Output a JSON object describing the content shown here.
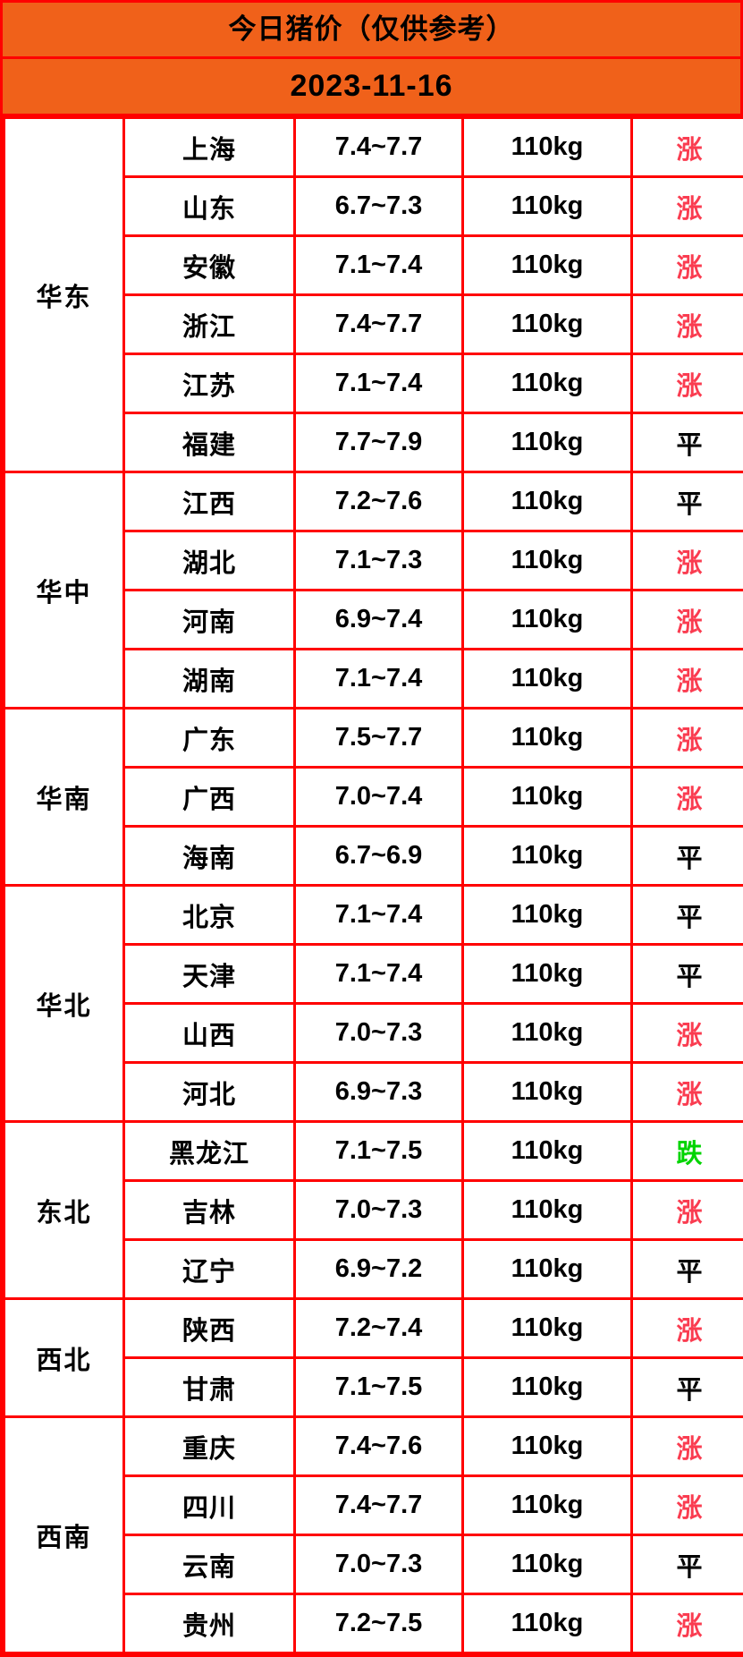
{
  "header": {
    "title": "今日猪价（仅供参考）",
    "date": "2023-11-16"
  },
  "colors": {
    "header_orange": "#f0611a",
    "grid_red": "#ff0000",
    "trend_up_red": "#fa3c50",
    "trend_down_green": "#00d400",
    "trend_flat_black": "#000000"
  },
  "chart_data": {
    "type": "table",
    "title": "今日猪价（仅供参考）",
    "date": "2023-11-16",
    "regions": [
      {
        "name": "华东",
        "rows": [
          {
            "province": "上海",
            "price": "7.4~7.7",
            "weight": "110kg",
            "trend": "涨",
            "trend_type": "up"
          },
          {
            "province": "山东",
            "price": "6.7~7.3",
            "weight": "110kg",
            "trend": "涨",
            "trend_type": "up"
          },
          {
            "province": "安徽",
            "price": "7.1~7.4",
            "weight": "110kg",
            "trend": "涨",
            "trend_type": "up"
          },
          {
            "province": "浙江",
            "price": "7.4~7.7",
            "weight": "110kg",
            "trend": "涨",
            "trend_type": "up"
          },
          {
            "province": "江苏",
            "price": "7.1~7.4",
            "weight": "110kg",
            "trend": "涨",
            "trend_type": "up"
          },
          {
            "province": "福建",
            "price": "7.7~7.9",
            "weight": "110kg",
            "trend": "平",
            "trend_type": "flat"
          }
        ]
      },
      {
        "name": "华中",
        "rows": [
          {
            "province": "江西",
            "price": "7.2~7.6",
            "weight": "110kg",
            "trend": "平",
            "trend_type": "flat"
          },
          {
            "province": "湖北",
            "price": "7.1~7.3",
            "weight": "110kg",
            "trend": "涨",
            "trend_type": "up"
          },
          {
            "province": "河南",
            "price": "6.9~7.4",
            "weight": "110kg",
            "trend": "涨",
            "trend_type": "up"
          },
          {
            "province": "湖南",
            "price": "7.1~7.4",
            "weight": "110kg",
            "trend": "涨",
            "trend_type": "up"
          }
        ]
      },
      {
        "name": "华南",
        "rows": [
          {
            "province": "广东",
            "price": "7.5~7.7",
            "weight": "110kg",
            "trend": "涨",
            "trend_type": "up"
          },
          {
            "province": "广西",
            "price": "7.0~7.4",
            "weight": "110kg",
            "trend": "涨",
            "trend_type": "up"
          },
          {
            "province": "海南",
            "price": "6.7~6.9",
            "weight": "110kg",
            "trend": "平",
            "trend_type": "flat"
          }
        ]
      },
      {
        "name": "华北",
        "rows": [
          {
            "province": "北京",
            "price": "7.1~7.4",
            "weight": "110kg",
            "trend": "平",
            "trend_type": "flat"
          },
          {
            "province": "天津",
            "price": "7.1~7.4",
            "weight": "110kg",
            "trend": "平",
            "trend_type": "flat"
          },
          {
            "province": "山西",
            "price": "7.0~7.3",
            "weight": "110kg",
            "trend": "涨",
            "trend_type": "up"
          },
          {
            "province": "河北",
            "price": "6.9~7.3",
            "weight": "110kg",
            "trend": "涨",
            "trend_type": "up"
          }
        ]
      },
      {
        "name": "东北",
        "rows": [
          {
            "province": "黑龙江",
            "price": "7.1~7.5",
            "weight": "110kg",
            "trend": "跌",
            "trend_type": "down"
          },
          {
            "province": "吉林",
            "price": "7.0~7.3",
            "weight": "110kg",
            "trend": "涨",
            "trend_type": "up"
          },
          {
            "province": "辽宁",
            "price": "6.9~7.2",
            "weight": "110kg",
            "trend": "平",
            "trend_type": "flat"
          }
        ]
      },
      {
        "name": "西北",
        "rows": [
          {
            "province": "陕西",
            "price": "7.2~7.4",
            "weight": "110kg",
            "trend": "涨",
            "trend_type": "up"
          },
          {
            "province": "甘肃",
            "price": "7.1~7.5",
            "weight": "110kg",
            "trend": "平",
            "trend_type": "flat"
          }
        ]
      },
      {
        "name": "西南",
        "rows": [
          {
            "province": "重庆",
            "price": "7.4~7.6",
            "weight": "110kg",
            "trend": "涨",
            "trend_type": "up"
          },
          {
            "province": "四川",
            "price": "7.4~7.7",
            "weight": "110kg",
            "trend": "涨",
            "trend_type": "up"
          },
          {
            "province": "云南",
            "price": "7.0~7.3",
            "weight": "110kg",
            "trend": "平",
            "trend_type": "flat"
          },
          {
            "province": "贵州",
            "price": "7.2~7.5",
            "weight": "110kg",
            "trend": "涨",
            "trend_type": "up"
          }
        ]
      }
    ]
  }
}
